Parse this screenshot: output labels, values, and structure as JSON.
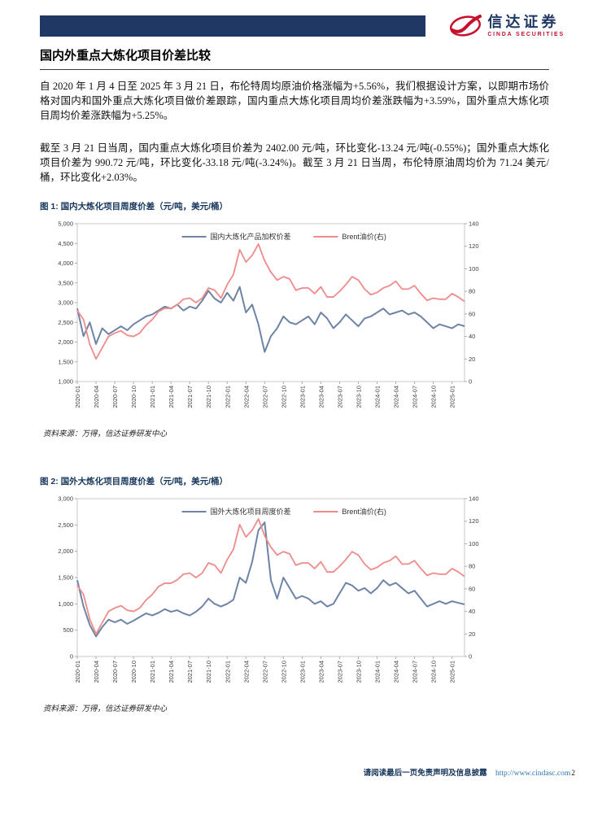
{
  "header": {
    "brand_cn": "信达证券",
    "brand_en": "CINDA SECURITIES"
  },
  "title": "国内外重点大炼化项目价差比较",
  "paragraphs": [
    "自 2020 年 1 月 4 日至 2025 年 3 月 21 日，布伦特周均原油价格涨幅为+5.56%，我们根据设计方案，以即期市场价格对国内和国外重点大炼化项目做价差跟踪，国内重点大炼化项目周均价差涨跌幅为+3.59%，国外重点大炼化项目周均价差涨跌幅为+5.25%。",
    "截至 3 月 21 日当周，国内重点大炼化项目价差为 2402.00 元/吨，环比变化-13.24 元/吨(-0.55%)；国外重点大炼化项目价差为 990.72 元/吨，环比变化-33.18 元/吨(-3.24%)。截至 3 月 21 日当周，布伦特原油周均价为 71.24 美元/桶，环比变化+2.03%。"
  ],
  "figures": [
    {
      "caption": "图 1: 国内大炼化项目周度价差（元/吨，美元/桶）",
      "source": "资料来源：万得，信达证券研发中心"
    },
    {
      "caption": "图 2: 国外大炼化项目周度价差（元/吨，美元/桶）",
      "source": "资料来源：万得，信达证券研发中心"
    }
  ],
  "footer": {
    "disclaimer": "请阅读最后一页免责声明及信息披露",
    "url": "http://www.cindasc.com",
    "page_number": "2"
  },
  "chart_data": [
    {
      "type": "line",
      "title": "图 1: 国内大炼化项目周度价差（元/吨，美元/桶）",
      "grid": false,
      "legend_position": "top-inside",
      "left_axis": {
        "min": 1000,
        "max": 5000,
        "step": 500
      },
      "right_axis": {
        "min": 0,
        "max": 140,
        "step": 20
      },
      "x_tick_labels": [
        "2020-01",
        "2020-04",
        "2020-07",
        "2020-10",
        "2021-01",
        "2021-04",
        "2021-07",
        "2021-10",
        "2022-01",
        "2022-04",
        "2022-07",
        "2022-10",
        "2023-01",
        "2023-04",
        "2023-07",
        "2023-10",
        "2024-01",
        "2024-04",
        "2024-07",
        "2024-10",
        "2025-01"
      ],
      "x": [
        "2020-01",
        "2020-02",
        "2020-03",
        "2020-04",
        "2020-05",
        "2020-06",
        "2020-07",
        "2020-08",
        "2020-09",
        "2020-10",
        "2020-11",
        "2020-12",
        "2021-01",
        "2021-02",
        "2021-03",
        "2021-04",
        "2021-05",
        "2021-06",
        "2021-07",
        "2021-08",
        "2021-09",
        "2021-10",
        "2021-11",
        "2021-12",
        "2022-01",
        "2022-02",
        "2022-03",
        "2022-04",
        "2022-05",
        "2022-06",
        "2022-07",
        "2022-08",
        "2022-09",
        "2022-10",
        "2022-11",
        "2022-12",
        "2023-01",
        "2023-02",
        "2023-03",
        "2023-04",
        "2023-05",
        "2023-06",
        "2023-07",
        "2023-08",
        "2023-09",
        "2023-10",
        "2023-11",
        "2023-12",
        "2024-01",
        "2024-02",
        "2024-03",
        "2024-04",
        "2024-05",
        "2024-06",
        "2024-07",
        "2024-08",
        "2024-09",
        "2024-10",
        "2024-11",
        "2024-12",
        "2025-01",
        "2025-02",
        "2025-03"
      ],
      "series": [
        {
          "name": "国内大炼化产品加权价差",
          "axis": "left",
          "color": "#6e84a6",
          "values": [
            2850,
            2150,
            2500,
            1950,
            2350,
            2200,
            2300,
            2400,
            2300,
            2450,
            2550,
            2650,
            2700,
            2800,
            2900,
            2850,
            2950,
            2800,
            2900,
            2850,
            3050,
            3300,
            3100,
            3000,
            3250,
            3050,
            3400,
            2750,
            2950,
            2450,
            1750,
            2150,
            2350,
            2650,
            2500,
            2450,
            2550,
            2650,
            2450,
            2750,
            2600,
            2350,
            2500,
            2700,
            2550,
            2400,
            2600,
            2650,
            2750,
            2850,
            2700,
            2750,
            2800,
            2700,
            2750,
            2650,
            2500,
            2350,
            2450,
            2400,
            2350,
            2450,
            2402
          ]
        },
        {
          "name": "Brent油价(右)",
          "axis": "right",
          "color": "#ef8b8b",
          "values": [
            63,
            55,
            33,
            20,
            30,
            40,
            43,
            45,
            41,
            40,
            43,
            50,
            55,
            62,
            65,
            65,
            68,
            73,
            74,
            70,
            74,
            83,
            81,
            74,
            86,
            95,
            117,
            106,
            112,
            122,
            107,
            97,
            90,
            93,
            91,
            81,
            83,
            83,
            78,
            84,
            75,
            75,
            80,
            86,
            93,
            90,
            82,
            77,
            79,
            83,
            85,
            89,
            82,
            82,
            85,
            78,
            72,
            74,
            73,
            73,
            78,
            75,
            71
          ]
        }
      ]
    },
    {
      "type": "line",
      "title": "图 2: 国外大炼化项目周度价差（元/吨，美元/桶）",
      "grid": false,
      "legend_position": "top-inside",
      "left_axis": {
        "min": 0,
        "max": 3000,
        "step": 500
      },
      "right_axis": {
        "min": 0,
        "max": 140,
        "step": 20
      },
      "x_tick_labels": [
        "2020-01",
        "2020-04",
        "2020-07",
        "2020-10",
        "2021-01",
        "2021-04",
        "2021-07",
        "2021-10",
        "2022-01",
        "2022-04",
        "2022-07",
        "2022-10",
        "2023-01",
        "2023-04",
        "2023-07",
        "2023-10",
        "2024-01",
        "2024-04",
        "2024-07",
        "2024-10",
        "2025-01"
      ],
      "x": [
        "2020-01",
        "2020-02",
        "2020-03",
        "2020-04",
        "2020-05",
        "2020-06",
        "2020-07",
        "2020-08",
        "2020-09",
        "2020-10",
        "2020-11",
        "2020-12",
        "2021-01",
        "2021-02",
        "2021-03",
        "2021-04",
        "2021-05",
        "2021-06",
        "2021-07",
        "2021-08",
        "2021-09",
        "2021-10",
        "2021-11",
        "2021-12",
        "2022-01",
        "2022-02",
        "2022-03",
        "2022-04",
        "2022-05",
        "2022-06",
        "2022-07",
        "2022-08",
        "2022-09",
        "2022-10",
        "2022-11",
        "2022-12",
        "2023-01",
        "2023-02",
        "2023-03",
        "2023-04",
        "2023-05",
        "2023-06",
        "2023-07",
        "2023-08",
        "2023-09",
        "2023-10",
        "2023-11",
        "2023-12",
        "2024-01",
        "2024-02",
        "2024-03",
        "2024-04",
        "2024-05",
        "2024-06",
        "2024-07",
        "2024-08",
        "2024-09",
        "2024-10",
        "2024-11",
        "2024-12",
        "2025-01",
        "2025-02",
        "2025-03"
      ],
      "series": [
        {
          "name": "国外大炼化项目周度价差",
          "axis": "left",
          "color": "#6e84a6",
          "values": [
            1450,
            950,
            600,
            380,
            560,
            700,
            650,
            700,
            620,
            680,
            750,
            820,
            780,
            830,
            900,
            850,
            880,
            820,
            780,
            850,
            950,
            1100,
            1000,
            950,
            1000,
            1080,
            1500,
            1400,
            1800,
            2400,
            2550,
            1450,
            1100,
            1500,
            1300,
            1100,
            1150,
            1100,
            1000,
            1050,
            950,
            1000,
            1200,
            1400,
            1350,
            1250,
            1300,
            1200,
            1300,
            1450,
            1350,
            1400,
            1300,
            1200,
            1250,
            1100,
            950,
            1000,
            1050,
            1000,
            1050,
            1020,
            991
          ]
        },
        {
          "name": "Brent油价(右)",
          "axis": "right",
          "color": "#ef8b8b",
          "values": [
            63,
            55,
            33,
            20,
            30,
            40,
            43,
            45,
            41,
            40,
            43,
            50,
            55,
            62,
            65,
            65,
            68,
            73,
            74,
            70,
            74,
            83,
            81,
            74,
            86,
            95,
            117,
            106,
            112,
            122,
            107,
            97,
            90,
            93,
            91,
            81,
            83,
            83,
            78,
            84,
            75,
            75,
            80,
            86,
            93,
            90,
            82,
            77,
            79,
            83,
            85,
            89,
            82,
            82,
            85,
            78,
            72,
            74,
            73,
            73,
            78,
            75,
            71
          ]
        }
      ]
    }
  ]
}
